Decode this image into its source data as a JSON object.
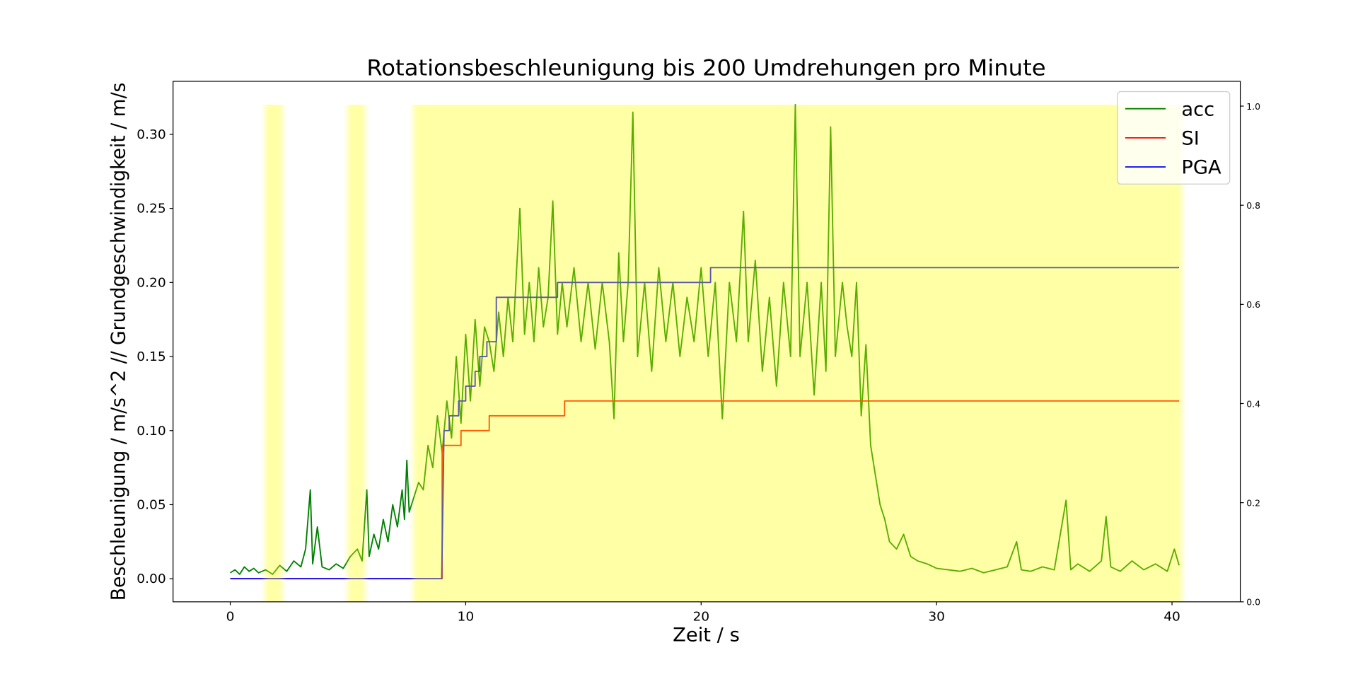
{
  "chart_data": {
    "type": "line",
    "title": "Rotationsbeschleunigung bis 200 Umdrehungen pro Minute",
    "xlabel": "Zeit / s",
    "ylabel": "Beschleunigung / m/s^2 // Grundgeschwindigkeit / m/s",
    "xlim": [
      -2.43,
      42.9
    ],
    "xticks": [
      0,
      10,
      20,
      30,
      40
    ],
    "ylim": [
      -0.0156,
      0.3358
    ],
    "yticks": [
      {
        "value": 0,
        "label": "0.00"
      },
      {
        "value": 0.05,
        "label": "0.05"
      },
      {
        "value": 0.1,
        "label": "0.10"
      },
      {
        "value": 0.15,
        "label": "0.15"
      },
      {
        "value": 0.2,
        "label": "0.20"
      },
      {
        "value": 0.25,
        "label": "0.25"
      },
      {
        "value": 0.3,
        "label": "0.30"
      }
    ],
    "y2lim": [
      0,
      1.05
    ],
    "y2ticks": [
      {
        "value": 0,
        "label": "0.0"
      },
      {
        "value": 0.2,
        "label": "0.2"
      },
      {
        "value": 0.4,
        "label": "0.4"
      },
      {
        "value": 0.6,
        "label": "0.6"
      },
      {
        "value": 0.8,
        "label": "0.8"
      },
      {
        "value": 1,
        "label": "1.0"
      }
    ],
    "legend": "upper right",
    "spans": {
      "ranges": [
        [
          1.3,
          2.4
        ],
        [
          4.8,
          5.9
        ],
        [
          7.6,
          40.6
        ]
      ],
      "ymax": 0.32,
      "color": "yellow",
      "alpha": 0.35
    },
    "series": [
      {
        "name": "acc",
        "color": "green",
        "x": [
          0,
          0.2,
          0.4,
          0.6,
          0.8,
          1.0,
          1.2,
          1.5,
          1.8,
          2.1,
          2.4,
          2.7,
          3.0,
          3.2,
          3.4,
          3.5,
          3.7,
          3.9,
          4.2,
          4.5,
          4.8,
          5.1,
          5.4,
          5.6,
          5.8,
          5.9,
          6.1,
          6.3,
          6.5,
          6.7,
          6.9,
          7.1,
          7.3,
          7.4,
          7.5,
          7.6,
          7.8,
          8.0,
          8.2,
          8.4,
          8.6,
          8.8,
          9.0,
          9.2,
          9.4,
          9.6,
          9.8,
          10.0,
          10.2,
          10.4,
          10.6,
          10.8,
          11.0,
          11.2,
          11.4,
          11.6,
          11.8,
          12.0,
          12.3,
          12.5,
          12.7,
          12.9,
          13.1,
          13.3,
          13.5,
          13.7,
          13.9,
          14.1,
          14.3,
          14.6,
          14.9,
          15.2,
          15.5,
          15.8,
          16.1,
          16.3,
          16.5,
          16.7,
          16.9,
          17.1,
          17.3,
          17.6,
          17.9,
          18.2,
          18.5,
          18.8,
          19.1,
          19.4,
          19.7,
          20.0,
          20.3,
          20.6,
          20.9,
          21.2,
          21.5,
          21.8,
          22.0,
          22.3,
          22.6,
          22.9,
          23.2,
          23.5,
          23.8,
          24.0,
          24.2,
          24.5,
          24.8,
          25.1,
          25.3,
          25.5,
          25.7,
          26.0,
          26.2,
          26.4,
          26.6,
          26.8,
          27.0,
          27.2,
          27.4,
          27.6,
          27.8,
          28.0,
          28.3,
          28.6,
          28.9,
          29.2,
          29.6,
          30.0,
          30.5,
          31.0,
          31.5,
          32.0,
          32.5,
          33.0,
          33.4,
          33.6,
          34.0,
          34.5,
          35.0,
          35.5,
          35.7,
          36.0,
          36.5,
          37.0,
          37.2,
          37.4,
          37.8,
          38.3,
          38.8,
          39.3,
          39.8,
          40.1,
          40.3
        ],
        "values": [
          0.004,
          0.006,
          0.003,
          0.008,
          0.005,
          0.007,
          0.004,
          0.006,
          0.003,
          0.009,
          0.005,
          0.012,
          0.008,
          0.02,
          0.06,
          0.01,
          0.035,
          0.008,
          0.006,
          0.01,
          0.007,
          0.015,
          0.02,
          0.012,
          0.06,
          0.015,
          0.03,
          0.02,
          0.04,
          0.025,
          0.05,
          0.035,
          0.06,
          0.04,
          0.08,
          0.045,
          0.055,
          0.065,
          0.06,
          0.09,
          0.075,
          0.11,
          0.085,
          0.12,
          0.095,
          0.15,
          0.105,
          0.165,
          0.12,
          0.175,
          0.13,
          0.17,
          0.16,
          0.14,
          0.18,
          0.15,
          0.19,
          0.16,
          0.25,
          0.165,
          0.2,
          0.16,
          0.21,
          0.17,
          0.19,
          0.255,
          0.165,
          0.2,
          0.17,
          0.21,
          0.16,
          0.2,
          0.155,
          0.2,
          0.16,
          0.108,
          0.22,
          0.16,
          0.2,
          0.315,
          0.15,
          0.2,
          0.14,
          0.21,
          0.16,
          0.2,
          0.15,
          0.19,
          0.16,
          0.21,
          0.15,
          0.2,
          0.108,
          0.2,
          0.16,
          0.248,
          0.16,
          0.215,
          0.14,
          0.19,
          0.13,
          0.2,
          0.15,
          0.32,
          0.15,
          0.2,
          0.124,
          0.2,
          0.14,
          0.305,
          0.15,
          0.2,
          0.17,
          0.15,
          0.2,
          0.11,
          0.158,
          0.09,
          0.07,
          0.05,
          0.04,
          0.025,
          0.02,
          0.03,
          0.015,
          0.012,
          0.01,
          0.007,
          0.006,
          0.005,
          0.007,
          0.004,
          0.006,
          0.008,
          0.025,
          0.006,
          0.005,
          0.008,
          0.006,
          0.053,
          0.006,
          0.01,
          0.005,
          0.012,
          0.042,
          0.008,
          0.005,
          0.012,
          0.006,
          0.01,
          0.005,
          0.02,
          0.009
        ]
      },
      {
        "name": "SI",
        "color": "red",
        "x": [
          0,
          9.0,
          9.0,
          9.8,
          9.8,
          11.0,
          11.0,
          14.2,
          14.2,
          40.3
        ],
        "values": [
          0,
          0,
          0.09,
          0.09,
          0.1,
          0.1,
          0.11,
          0.11,
          0.12,
          0.12
        ]
      },
      {
        "name": "PGA",
        "color": "blue",
        "x": [
          0,
          8.98,
          9.08,
          9.3,
          9.3,
          9.7,
          9.7,
          10.0,
          10.0,
          10.4,
          10.4,
          10.6,
          10.6,
          10.9,
          10.9,
          11.3,
          11.3,
          13.9,
          13.9,
          20.4,
          20.4,
          40.3
        ],
        "values": [
          0,
          0,
          0.1,
          0.1,
          0.11,
          0.11,
          0.12,
          0.12,
          0.13,
          0.13,
          0.14,
          0.14,
          0.15,
          0.15,
          0.16,
          0.16,
          0.19,
          0.19,
          0.2,
          0.2,
          0.21,
          0.21
        ]
      }
    ]
  }
}
